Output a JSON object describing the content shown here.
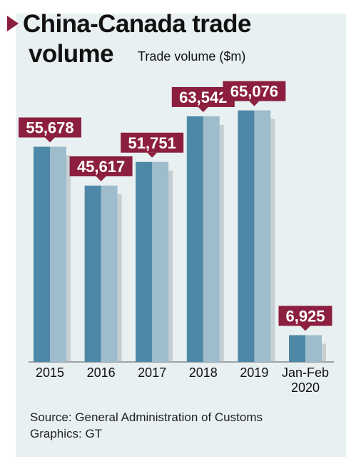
{
  "header": {
    "title_line1": "China-Canada trade",
    "title_line2": "volume",
    "subtitle": "Trade volume ($m)"
  },
  "footer": {
    "source": "Source: General Administration of Customs",
    "credit": "Graphics: GT"
  },
  "chart_data": {
    "type": "bar",
    "title": "China-Canada trade volume",
    "ylabel": "Trade volume ($m)",
    "xlabel": "",
    "categories": [
      [
        "2015"
      ],
      [
        "2016"
      ],
      [
        "2017"
      ],
      [
        "2018"
      ],
      [
        "2019"
      ],
      [
        "Jan-Feb",
        "2020"
      ]
    ],
    "values": [
      55678,
      45617,
      51751,
      63542,
      65076,
      6925
    ],
    "value_labels": [
      "55,678",
      "45,617",
      "51,751",
      "63,542",
      "65,076",
      "6,925"
    ],
    "ylim": [
      0,
      70000
    ],
    "grid": false,
    "legend": "none",
    "colors": {
      "panel_bg": "#e8f0f1",
      "bar_front": "#4d88a6",
      "bar_back": "#9fbccd",
      "bar_shadow": "#a8b4b8",
      "label_bg": "#8c1f3f",
      "label_text": "#ffffff",
      "marker": "#8c1f3f"
    }
  }
}
